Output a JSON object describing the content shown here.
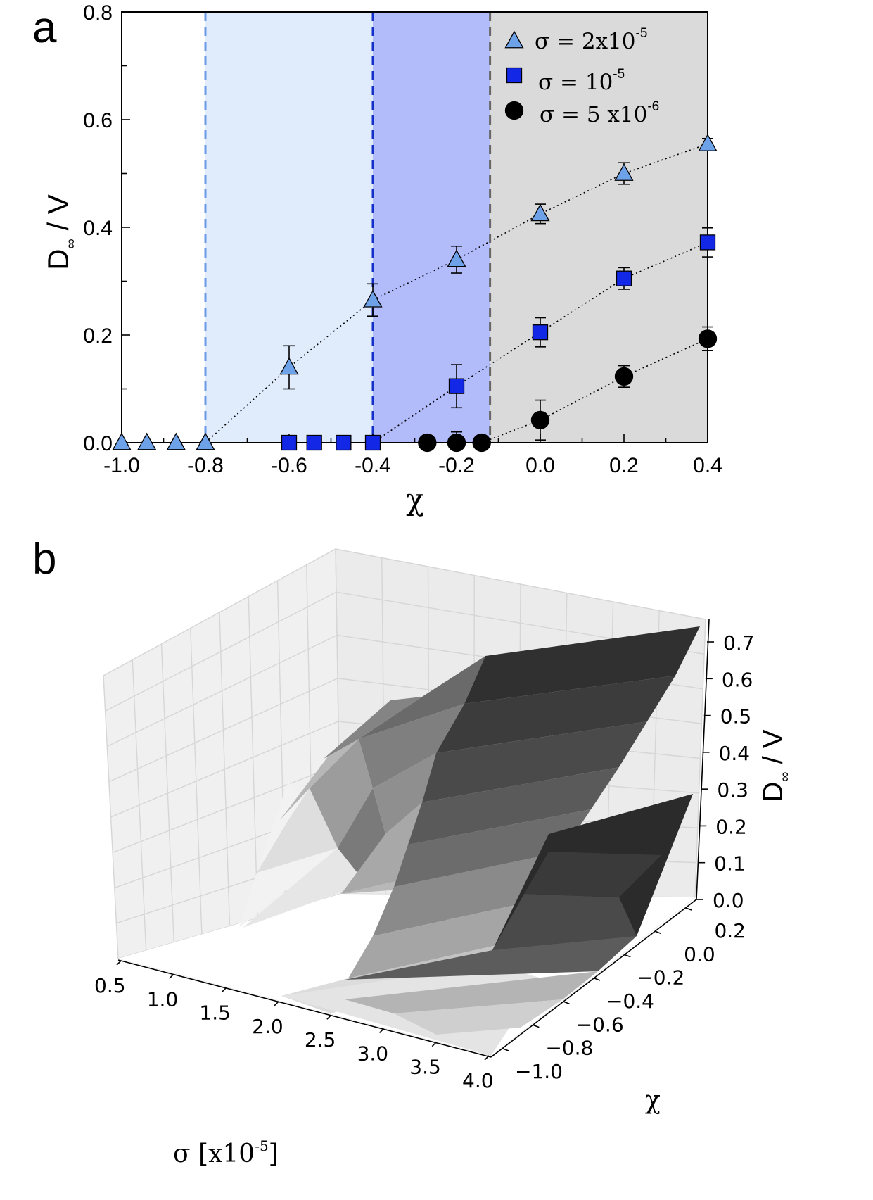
{
  "chart_data": [
    {
      "panel": "a",
      "type": "scatter",
      "xlabel": "χ",
      "ylabel": "D∞ / V",
      "ylabel_main": "D",
      "ylabel_sub": "∞",
      "ylabel_rest": " / V",
      "xlim": [
        -1.0,
        0.4
      ],
      "ylim": [
        0.0,
        0.8
      ],
      "x_ticks": [
        -1.0,
        -0.8,
        -0.6,
        -0.4,
        -0.2,
        0.0,
        0.2,
        0.4
      ],
      "x_tick_labels": [
        "-1.0",
        "-0.8",
        "-0.6",
        "-0.4",
        "-0.2",
        "0.0",
        "0.2",
        "0.4"
      ],
      "y_ticks": [
        0.0,
        0.2,
        0.4,
        0.6,
        0.8
      ],
      "y_tick_labels": [
        "0.0",
        "0.2",
        "0.4",
        "0.6",
        "0.8"
      ],
      "legend_position": "top-right",
      "shaded_regions": [
        {
          "x0": -0.8,
          "x1": -0.4,
          "color": "#e0ecfc"
        },
        {
          "x0": -0.4,
          "x1": -0.12,
          "color": "#b3bcfb"
        },
        {
          "x0": -0.12,
          "x1": 0.4,
          "color": "#dadada"
        }
      ],
      "vertical_lines": [
        {
          "x": -0.8,
          "color": "#6b9ae6"
        },
        {
          "x": -0.4,
          "color": "#1530c8"
        },
        {
          "x": -0.12,
          "color": "#666666"
        }
      ],
      "series": [
        {
          "name": "σ = 2x10⁻⁵",
          "legend_base": "σ = 2x10",
          "legend_exp": "-5",
          "marker": "triangle",
          "color": "#6ea2e8",
          "x": [
            -1.0,
            -0.94,
            -0.87,
            -0.8,
            -0.6,
            -0.4,
            -0.2,
            0.0,
            0.2,
            0.4
          ],
          "y": [
            0.0,
            0.0,
            0.0,
            0.0,
            0.14,
            0.265,
            0.34,
            0.425,
            0.5,
            0.555
          ],
          "yerr": [
            0,
            0,
            0,
            0,
            0.04,
            0.03,
            0.025,
            0.018,
            0.02,
            0.01
          ]
        },
        {
          "name": "σ = 10⁻⁵",
          "legend_base": "σ = 10",
          "legend_exp": "-5",
          "marker": "square",
          "color": "#1328e6",
          "x": [
            -0.6,
            -0.54,
            -0.47,
            -0.4,
            -0.2,
            0.0,
            0.2,
            0.4
          ],
          "y": [
            0.0,
            0.0,
            0.0,
            0.0,
            0.105,
            0.205,
            0.305,
            0.372
          ],
          "yerr": [
            0,
            0,
            0,
            0,
            0.04,
            0.027,
            0.02,
            0.027
          ]
        },
        {
          "name": "σ = 5 x10⁻⁶",
          "legend_base": "σ = 5 x10",
          "legend_exp": "-6",
          "marker": "circle",
          "color": "#000000",
          "x": [
            -0.27,
            -0.2,
            -0.14,
            0.0,
            0.2,
            0.4
          ],
          "y": [
            0.0,
            0.0,
            0.0,
            0.042,
            0.123,
            0.193
          ],
          "yerr": [
            0,
            0.02,
            0,
            0.037,
            0.02,
            0.022
          ]
        }
      ]
    },
    {
      "panel": "b",
      "type": "surface3d",
      "xlabel": "σ [x10⁻⁵]",
      "xlabel_base": "σ [x10",
      "xlabel_exp": "-5",
      "xlabel_close": "]",
      "ylabel": "χ",
      "zlabel": "D∞ / V",
      "x_ticks": [
        "0.5",
        "1.0",
        "1.5",
        "2.0",
        "2.5",
        "3.0",
        "3.5",
        "4.0"
      ],
      "y_ticks": [
        "−1.0",
        "−0.8",
        "−0.6",
        "−0.4",
        "−0.2",
        "0.0",
        "0.2"
      ],
      "z_ticks": [
        "0.0",
        "0.1",
        "0.2",
        "0.3",
        "0.4",
        "0.5",
        "0.6",
        "0.7"
      ],
      "xlim": [
        0.5,
        4.0
      ],
      "ylim": [
        -1.0,
        0.4
      ],
      "zlim": [
        0.0,
        0.7
      ],
      "colormap": "greys",
      "grid": true
    }
  ],
  "panel_a_letter": "a",
  "panel_b_letter": "b"
}
